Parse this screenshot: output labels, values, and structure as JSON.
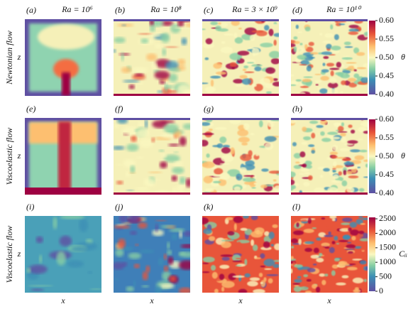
{
  "figure": {
    "column_titles": [
      "Ra = 10⁶",
      "Ra = 10⁸",
      "Ra = 3 × 10⁹",
      "Ra = 10¹⁰"
    ],
    "row_labels": [
      "Newtonian flow",
      "Viscoelastic flow",
      "Viscoelastic flow"
    ],
    "panels": [
      "(a)",
      "(b)",
      "(c)",
      "(d)",
      "(e)",
      "(f)",
      "(g)",
      "(h)",
      "(i)",
      "(j)",
      "(k)",
      "(l)"
    ],
    "x_label": "x",
    "z_label": "z",
    "colorbars": [
      {
        "label": "θ",
        "lim": [
          0.4,
          0.6
        ],
        "ticks": [
          {
            "value": 0.4,
            "label": "0.40"
          },
          {
            "value": 0.45,
            "label": "0.45"
          },
          {
            "value": 0.5,
            "label": "0.50"
          },
          {
            "value": 0.55,
            "label": "0.55"
          },
          {
            "value": 0.6,
            "label": "0.60"
          }
        ]
      },
      {
        "label": "θ",
        "lim": [
          0.4,
          0.6
        ],
        "ticks": [
          {
            "value": 0.4,
            "label": "0.40"
          },
          {
            "value": 0.45,
            "label": "0.45"
          },
          {
            "value": 0.5,
            "label": "0.50"
          },
          {
            "value": 0.55,
            "label": "0.55"
          },
          {
            "value": 0.6,
            "label": "0.60"
          }
        ]
      },
      {
        "label": "Cᵢᵢ",
        "lim": [
          0,
          2550
        ],
        "ticks": [
          0,
          500,
          1000,
          1500,
          2000,
          2500
        ]
      }
    ]
  }
}
